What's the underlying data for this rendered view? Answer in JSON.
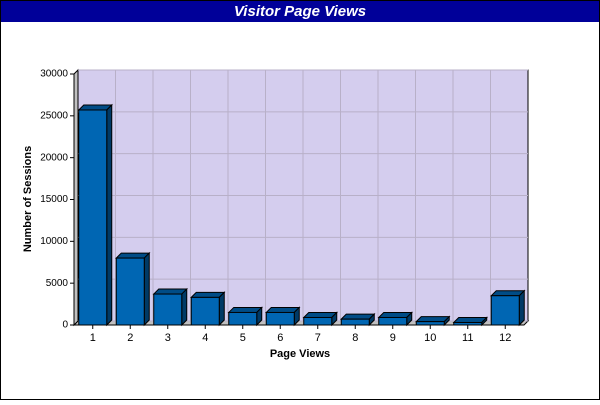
{
  "chart_data": {
    "type": "bar3d",
    "title": "Visitor Page Views",
    "x_label": "Page Views",
    "y_label": "Number of Sessions",
    "categories": [
      "1",
      "2",
      "3",
      "4",
      "5",
      "6",
      "7",
      "8",
      "9",
      "10",
      "11",
      "12"
    ],
    "values": [
      25700,
      8000,
      3700,
      3300,
      1500,
      1500,
      900,
      700,
      900,
      400,
      300,
      3500
    ],
    "color": "#0066b3",
    "ylim": [
      0,
      30000
    ],
    "yticks": [
      0,
      5000,
      10000,
      15000,
      20000,
      25000,
      30000
    ],
    "grid": true
  }
}
